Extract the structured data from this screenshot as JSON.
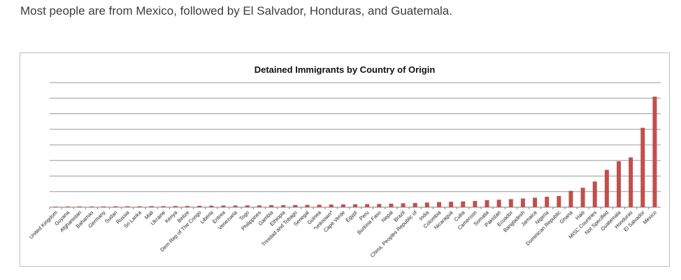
{
  "caption": "Most people are from Mexico, followed by El Salvador, Honduras, and Guatemala.",
  "colors": {
    "bar": "#c0504d",
    "grid": "#9a9a9a",
    "axis": "#7f7f7f"
  },
  "chart_data": {
    "type": "bar",
    "title": "Detained Immigrants by Country of Origin",
    "xlabel": "",
    "ylabel": "",
    "grid": true,
    "legend": "none",
    "y_tick_labels_shown": false,
    "ylim": [
      0,
      8
    ],
    "categories": [
      "United Kingdom",
      "Guyana",
      "Afghanistan",
      "Bahamas",
      "Germany",
      "Sudan",
      "Russia",
      "Sri Lanka",
      "Mali",
      "Ukraine",
      "Kenya",
      "Belize",
      "Dem Rep of The Congo",
      "Liberia",
      "Eritrea",
      "Venezuela",
      "Togo",
      "Philippines",
      "Gambia",
      "Ethiopia",
      "Trinidad and Tobago",
      "Senegal",
      "Guinea",
      "*unknown*",
      "Cape Verde",
      "Egypt",
      "Peru",
      "Burkina Faso",
      "Nepal",
      "Brazil",
      "China, Peoples Republic of",
      "India",
      "Colombia",
      "Nicaragua",
      "Cuba",
      "Cameroon",
      "Somalia",
      "Pakistan",
      "Ecuador",
      "Bangladesh",
      "Jamaica",
      "Nigeria",
      "Dominican Republic",
      "Ghana",
      "Haiti",
      "MISC Countries",
      "Not Specified",
      "Guatemala",
      "Honduras",
      "El Salvador",
      "Mexico"
    ],
    "values": [
      0.04,
      0.05,
      0.05,
      0.05,
      0.05,
      0.06,
      0.06,
      0.06,
      0.07,
      0.07,
      0.08,
      0.08,
      0.09,
      0.1,
      0.11,
      0.11,
      0.12,
      0.12,
      0.13,
      0.13,
      0.14,
      0.15,
      0.16,
      0.17,
      0.18,
      0.19,
      0.2,
      0.21,
      0.23,
      0.25,
      0.27,
      0.3,
      0.33,
      0.35,
      0.37,
      0.4,
      0.45,
      0.48,
      0.52,
      0.56,
      0.61,
      0.67,
      0.72,
      1.05,
      1.25,
      1.65,
      2.4,
      2.95,
      3.2,
      5.1,
      7.1
    ]
  }
}
